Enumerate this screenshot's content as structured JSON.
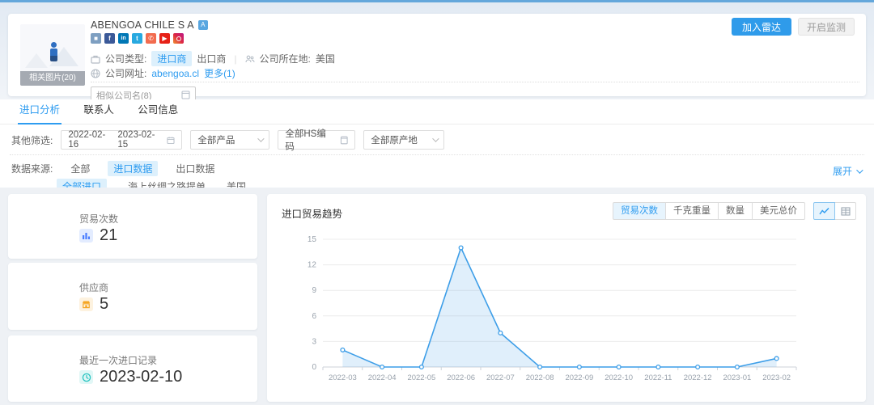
{
  "header": {
    "company_name": "ABENGOA CHILE S A",
    "related_images": "相关图片(20)",
    "add_radar": "加入雷达",
    "monitor": "开启监测",
    "company_type_label": "公司类型:",
    "importer": "进口商",
    "exporter": "出口商",
    "location_label": "公司所在地:",
    "location": "美国",
    "website_label": "公司网址:",
    "website": "abengoa.cl",
    "more": "更多(1)",
    "similar_input": "相似公司名(8)",
    "social_icons": [
      "blog",
      "facebook",
      "linkedin",
      "twitter",
      "phone",
      "youtube",
      "instagram"
    ]
  },
  "tabs": [
    {
      "label": "进口分析",
      "active": true
    },
    {
      "label": "联系人",
      "active": false
    },
    {
      "label": "公司信息",
      "active": false
    }
  ],
  "filters": {
    "other_label": "其他筛选:",
    "date_start": "2022-02-16",
    "date_end": "2023-02-15",
    "product": "全部产品",
    "hs": "全部HS编码",
    "origin": "全部原产地",
    "source_label": "数据来源:",
    "sources": [
      "全部",
      "进口数据",
      "出口数据"
    ],
    "source_active": "进口数据",
    "subs": [
      "全部进口",
      "海上丝绸之路提单",
      "美国"
    ],
    "sub_active": "全部进口",
    "expand": "展开"
  },
  "stats": [
    {
      "label": "贸易次数",
      "value": "21",
      "icon": "bar-chart-icon"
    },
    {
      "label": "供应商",
      "value": "5",
      "icon": "store-icon"
    },
    {
      "label": "最近一次进口记录",
      "value": "2023-02-10",
      "icon": "clock-icon"
    }
  ],
  "chart": {
    "title": "进口贸易趋势",
    "metrics": [
      "贸易次数",
      "千克重量",
      "数量",
      "美元总价"
    ],
    "active_metric": "贸易次数"
  },
  "chart_data": {
    "type": "area",
    "title": "进口贸易趋势",
    "x": [
      "2022-03",
      "2022-04",
      "2022-05",
      "2022-06",
      "2022-07",
      "2022-08",
      "2022-09",
      "2022-10",
      "2022-11",
      "2022-12",
      "2023-01",
      "2023-02"
    ],
    "values": [
      2,
      0,
      0,
      14,
      4,
      0,
      0,
      0,
      0,
      0,
      0,
      1
    ],
    "ylim": [
      0,
      15
    ],
    "yticks": [
      0,
      3,
      6,
      9,
      12,
      15
    ],
    "grid": true,
    "legend": "none",
    "line_color": "#3d9ee8",
    "fill_color": "rgba(61,158,232,0.16)",
    "xlabel": "",
    "ylabel": ""
  },
  "colors": {
    "accent": "#2e9cf0",
    "highlight_bg": "#ddf0fc",
    "top_bar": "#64a7db",
    "stat_blue": "#4a7dff",
    "stat_orange": "#f5a623",
    "stat_teal": "#2cc5c2"
  }
}
